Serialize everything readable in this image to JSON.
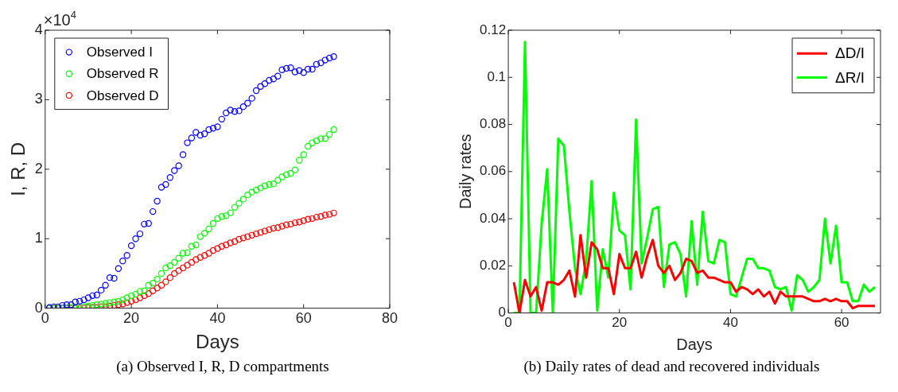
{
  "chart_data": [
    {
      "type": "scatter",
      "xlabel": "Days",
      "ylabel": "I, R, D",
      "xlim": [
        0,
        80
      ],
      "xticks": [
        0,
        20,
        40,
        60,
        80
      ],
      "ylim": [
        0,
        4
      ],
      "yticks": [
        0,
        1,
        2,
        3,
        4
      ],
      "legend": "top left",
      "marker": "circle",
      "annotations": [
        "×10$^{4}$",
        "(a) Observed I, R, D compartments"
      ],
      "x": [
        1,
        2,
        3,
        4,
        5,
        6,
        7,
        8,
        9,
        10,
        11,
        12,
        13,
        14,
        15,
        16,
        17,
        18,
        19,
        20,
        21,
        22,
        23,
        24,
        25,
        26,
        27,
        28,
        29,
        30,
        31,
        32,
        33,
        34,
        35,
        36,
        37,
        38,
        39,
        40,
        41,
        42,
        43,
        44,
        45,
        46,
        47,
        48,
        49,
        50,
        51,
        52,
        53,
        54,
        55,
        56,
        57,
        58,
        59,
        60,
        61,
        62,
        63,
        64,
        65,
        66,
        67
      ],
      "series": [
        {
          "name": "Observed I",
          "color": "#0000ff",
          "values": [
            0.01,
            0.02,
            0.02,
            0.04,
            0.05,
            0.05,
            0.09,
            0.1,
            0.12,
            0.15,
            0.18,
            0.19,
            0.26,
            0.33,
            0.44,
            0.43,
            0.57,
            0.68,
            0.76,
            0.9,
            1.0,
            1.07,
            1.21,
            1.22,
            1.39,
            1.54,
            1.74,
            1.78,
            1.88,
            1.98,
            2.05,
            2.21,
            2.38,
            2.45,
            2.53,
            2.49,
            2.51,
            2.57,
            2.59,
            2.61,
            2.72,
            2.81,
            2.85,
            2.83,
            2.84,
            2.9,
            2.95,
            3.02,
            3.13,
            3.19,
            3.23,
            3.28,
            3.3,
            3.34,
            3.43,
            3.45,
            3.46,
            3.4,
            3.42,
            3.39,
            3.44,
            3.44,
            3.51,
            3.53,
            3.57,
            3.6,
            3.62
          ]
        },
        {
          "name": "Observed R",
          "color": "#00ff00",
          "values": [
            0,
            0,
            0,
            0,
            0,
            0.01,
            0.02,
            0.02,
            0.02,
            0.03,
            0.04,
            0.05,
            0.06,
            0.07,
            0.08,
            0.09,
            0.1,
            0.12,
            0.15,
            0.18,
            0.2,
            0.24,
            0.25,
            0.33,
            0.36,
            0.42,
            0.5,
            0.58,
            0.61,
            0.66,
            0.72,
            0.79,
            0.8,
            0.89,
            0.91,
            1.03,
            1.08,
            1.14,
            1.22,
            1.29,
            1.32,
            1.33,
            1.37,
            1.45,
            1.51,
            1.57,
            1.63,
            1.67,
            1.7,
            1.73,
            1.76,
            1.78,
            1.79,
            1.84,
            1.89,
            1.92,
            1.94,
            1.99,
            2.13,
            2.21,
            2.33,
            2.38,
            2.41,
            2.44,
            2.44,
            2.5,
            2.57
          ]
        },
        {
          "name": "Observed D",
          "color": "#ff0000",
          "values": [
            0,
            0,
            0,
            0,
            0,
            0,
            0,
            0,
            0,
            0.01,
            0.01,
            0.01,
            0.02,
            0.02,
            0.03,
            0.04,
            0.05,
            0.06,
            0.08,
            0.1,
            0.12,
            0.15,
            0.18,
            0.21,
            0.25,
            0.29,
            0.33,
            0.38,
            0.44,
            0.5,
            0.54,
            0.58,
            0.62,
            0.66,
            0.7,
            0.73,
            0.76,
            0.79,
            0.83,
            0.86,
            0.89,
            0.91,
            0.94,
            0.96,
            0.99,
            1.01,
            1.03,
            1.05,
            1.07,
            1.09,
            1.11,
            1.13,
            1.15,
            1.16,
            1.18,
            1.2,
            1.21,
            1.23,
            1.24,
            1.26,
            1.28,
            1.29,
            1.31,
            1.32,
            1.34,
            1.35,
            1.37
          ]
        }
      ]
    },
    {
      "type": "line",
      "xlabel": "Days",
      "ylabel": "Daily rates",
      "xlim": [
        0,
        67
      ],
      "xticks": [
        0,
        20,
        40,
        60
      ],
      "ylim": [
        0,
        0.12
      ],
      "yticks": [
        0,
        0.02,
        0.04,
        0.06,
        0.08,
        0.1,
        0.12
      ],
      "legend": "top right",
      "annotations": [
        "(b) Daily rates of dead and recovered individuals"
      ],
      "x": [
        1,
        2,
        3,
        4,
        5,
        6,
        7,
        8,
        9,
        10,
        11,
        12,
        13,
        14,
        15,
        16,
        17,
        18,
        19,
        20,
        21,
        22,
        23,
        24,
        25,
        26,
        27,
        28,
        29,
        30,
        31,
        32,
        33,
        34,
        35,
        36,
        37,
        38,
        39,
        40,
        41,
        42,
        43,
        44,
        45,
        46,
        47,
        48,
        49,
        50,
        51,
        52,
        53,
        54,
        55,
        56,
        57,
        58,
        59,
        60,
        61,
        62,
        63,
        64,
        65,
        66
      ],
      "series": [
        {
          "name": "ΔD/I",
          "color": "#ff0000",
          "values": [
            0.013,
            0.0,
            0.014,
            0.007,
            0.011,
            0.001,
            0.013,
            0.013,
            0.012,
            0.014,
            0.018,
            0.007,
            0.033,
            0.015,
            0.03,
            0.027,
            0.019,
            0.019,
            0.008,
            0.025,
            0.019,
            0.019,
            0.026,
            0.015,
            0.024,
            0.031,
            0.02,
            0.017,
            0.02,
            0.014,
            0.017,
            0.023,
            0.022,
            0.017,
            0.018,
            0.015,
            0.015,
            0.014,
            0.013,
            0.013,
            0.009,
            0.011,
            0.01,
            0.008,
            0.01,
            0.007,
            0.009,
            0.004,
            0.009,
            0.007,
            0.007,
            0.007,
            0.007,
            0.006,
            0.005,
            0.005,
            0.006,
            0.005,
            0.006,
            0.005,
            0.005,
            0.002,
            0.003,
            0.003,
            0.003,
            0.003
          ]
        },
        {
          "name": "ΔR/I",
          "color": "#00ff00",
          "values": [
            0,
            0,
            0.115,
            0,
            0,
            0.038,
            0.061,
            0,
            0.074,
            0.071,
            0.043,
            0.019,
            0.008,
            0.022,
            0.056,
            0.001,
            0.027,
            0.015,
            0.051,
            0.035,
            0.033,
            0.01,
            0.082,
            0.021,
            0.032,
            0.044,
            0.045,
            0.011,
            0.029,
            0.03,
            0.025,
            0.007,
            0.039,
            0.012,
            0.043,
            0.022,
            0.021,
            0.031,
            0.03,
            0.008,
            0.007,
            0.015,
            0.023,
            0.023,
            0.019,
            0.019,
            0.018,
            0.011,
            0.01,
            0.011,
            0.001,
            0.016,
            0.014,
            0.009,
            0.011,
            0.014,
            0.04,
            0.021,
            0.037,
            0.013,
            0.013,
            0.005,
            0.005,
            0.012,
            0.009,
            0.011
          ]
        }
      ]
    }
  ]
}
